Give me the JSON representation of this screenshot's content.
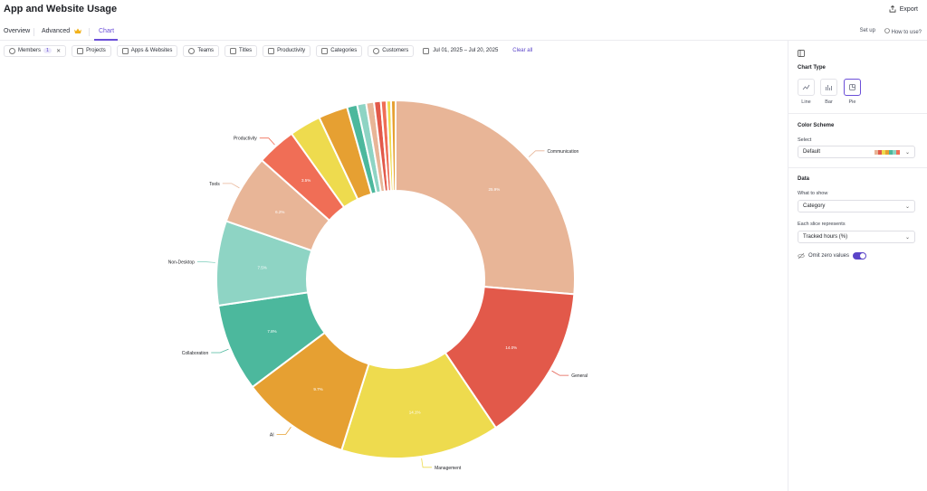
{
  "header": {
    "title": "App and Website Usage",
    "export_label": "Export"
  },
  "tabs": [
    {
      "label": "Overview"
    },
    {
      "label": "Advanced"
    },
    {
      "label": "Chart"
    }
  ],
  "tabs_right": {
    "setup_label": "Set up",
    "howto_label": "How to use?"
  },
  "filters": {
    "members": {
      "label": "Members",
      "count": "1"
    },
    "chips": [
      "Projects",
      "Apps & Websites",
      "Teams",
      "Titles",
      "Productivity",
      "Categories",
      "Customers"
    ],
    "date_range": "Jul 01, 2025 – Jul 20, 2025",
    "clear_label": "Clear all"
  },
  "right_panel": {
    "chart_type_title": "Chart Type",
    "chart_types": [
      "Line",
      "Bar",
      "Pie"
    ],
    "color_scheme_title": "Color Scheme",
    "select_label": "Select",
    "scheme_value": "Default",
    "data_title": "Data",
    "what_label": "What to show",
    "what_value": "Category",
    "slice_label": "Each slice represents",
    "slice_value": "Tracked hours (%)",
    "omit_label": "Omit zero values"
  },
  "colors": {
    "accent": "#6b4fd8",
    "swatches": [
      "#e8b597",
      "#e2594a",
      "#eedb4e",
      "#e6a032",
      "#4cb89d",
      "#8ed4c4",
      "#f06e56"
    ]
  },
  "chart_data": {
    "type": "pie",
    "donut": true,
    "slices": [
      {
        "label": "Communication",
        "value": 25.9,
        "pct": "25.9%",
        "color": "#e8b597"
      },
      {
        "label": "General",
        "value": 14.0,
        "pct": "14.0%",
        "color": "#e2594a"
      },
      {
        "label": "Management",
        "value": 14.1,
        "pct": "14.1%",
        "color": "#eedb4e"
      },
      {
        "label": "AI",
        "value": 9.7,
        "pct": "9.7%",
        "color": "#e6a032"
      },
      {
        "label": "Collaboration",
        "value": 7.8,
        "pct": "7.8%",
        "color": "#4cb89d"
      },
      {
        "label": "Non-Desktop",
        "value": 7.5,
        "pct": "7.5%",
        "color": "#8ed4c4"
      },
      {
        "label": "Tools",
        "value": 6.2,
        "pct": "6.2%",
        "color": "#e8b597"
      },
      {
        "label": "Productivity",
        "value": 3.5,
        "pct": "3.5%",
        "color": "#f06e56"
      },
      {
        "label": "",
        "value": 2.8,
        "pct": "",
        "color": "#eedb4e"
      },
      {
        "label": "",
        "value": 2.6,
        "pct": "",
        "color": "#e6a032"
      },
      {
        "label": "",
        "value": 0.9,
        "pct": "",
        "color": "#4cb89d"
      },
      {
        "label": "",
        "value": 0.8,
        "pct": "",
        "color": "#8ed4c4"
      },
      {
        "label": "",
        "value": 0.7,
        "pct": "",
        "color": "#e8b597"
      },
      {
        "label": "",
        "value": 0.6,
        "pct": "",
        "color": "#e2594a"
      },
      {
        "label": "",
        "value": 0.5,
        "pct": "",
        "color": "#f06e56"
      },
      {
        "label": "",
        "value": 0.4,
        "pct": "",
        "color": "#eedb4e"
      },
      {
        "label": "",
        "value": 0.4,
        "pct": "",
        "color": "#e6a032"
      }
    ]
  }
}
